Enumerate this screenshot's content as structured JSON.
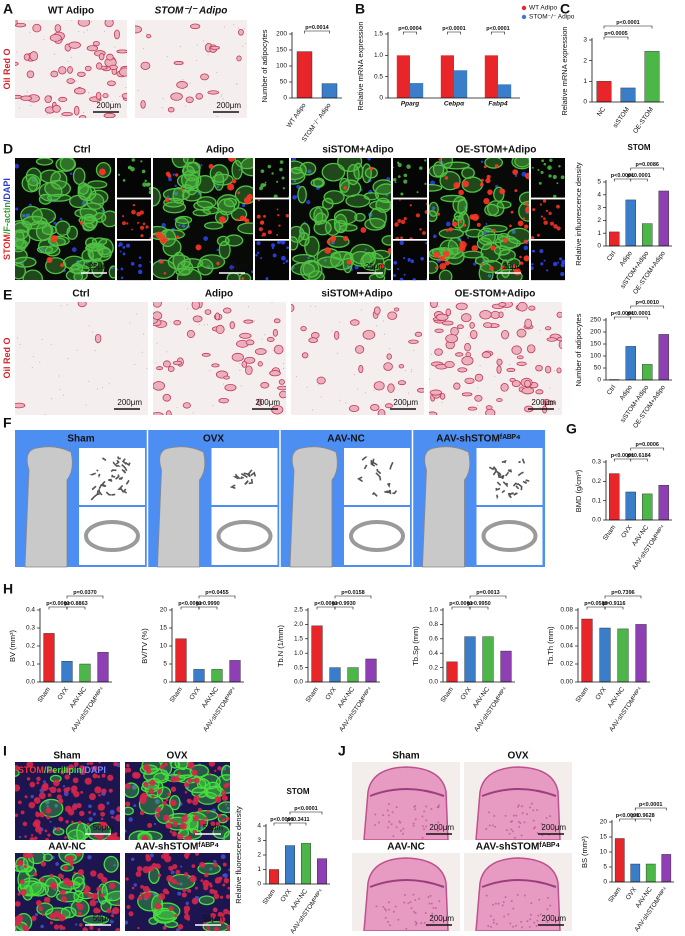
{
  "panel_letters": [
    "A",
    "B",
    "C",
    "D",
    "E",
    "F",
    "G",
    "H",
    "I",
    "J"
  ],
  "image_panels": {
    "A": {
      "labels": [
        "WT Adipo",
        "STOM⁻/⁻ Adipo"
      ],
      "stain": "Oil Red O",
      "scale": [
        "200μm",
        "200μm"
      ]
    },
    "D": {
      "labels": [
        "Ctrl",
        "Adipo",
        "siSTOM+Adipo",
        "OE-STOM+Adipo"
      ],
      "stain": [
        "STOM",
        "/F-actin",
        "/DAPI"
      ],
      "scale": [
        "25μm",
        "25μm",
        "25μm",
        "25μm"
      ]
    },
    "E": {
      "labels": [
        "Ctrl",
        "Adipo",
        "siSTOM+Adipo",
        "OE-STOM+Adipo"
      ],
      "stain": "Oil Red O",
      "scale": [
        "200μm",
        "200μm",
        "200μm",
        "200μm"
      ]
    },
    "F": {
      "labels": [
        "Sham",
        "OVX",
        "AAV-NC",
        "AAV-shSTOMᶠᴬᴮᴾ⁴"
      ]
    },
    "I": {
      "labels": [
        "Sham",
        "OVX",
        "AAV-NC",
        "AAV-shSTOMᶠᴬᴮᴾ⁴"
      ],
      "stain": [
        "STOM",
        "/Perilipin",
        "/DAPI"
      ],
      "scale": [
        "50μm",
        "50μm",
        "50μm",
        "50μm"
      ]
    },
    "J": {
      "labels": [
        "Sham",
        "OVX",
        "AAV-NC",
        "AAV-shSTOMᶠᴬᴮᴾ⁴"
      ],
      "scale": [
        "200μm",
        "200μm",
        "200μm",
        "200μm"
      ]
    }
  },
  "chart_data": [
    {
      "type": "bar",
      "y_label": "Number of adipocytes",
      "categories": [
        "WT Adipo",
        "STOM⁻/⁻ Adipo"
      ],
      "values": [
        145,
        45
      ],
      "colors": [
        "#e8262a",
        "#3a7dc9"
      ],
      "ylim": [
        0,
        200
      ],
      "yticks": [
        0,
        50,
        100,
        150,
        200
      ],
      "annotations": [
        "p=0.0014"
      ]
    },
    {
      "type": "bar",
      "y_label": "Relative mRNA expression",
      "categories": [
        "Pparg",
        "Cebpα",
        "Fabp4"
      ],
      "series": [
        {
          "name": "WT Adipo",
          "color": "#e8262a",
          "values": [
            1,
            1,
            1
          ]
        },
        {
          "name": "STOM⁻/⁻ Adipo",
          "color": "#3a7dc9",
          "values": [
            0.35,
            0.65,
            0.32
          ]
        }
      ],
      "legend": "upper right",
      "ylim": [
        0,
        1.5
      ],
      "yticks": [
        0,
        0.5,
        {
          "value": 1,
          "label": "1.0"
        },
        1.5
      ],
      "annotations": [
        "p=0.0004",
        "p<0.0001",
        "p<0.0001"
      ]
    },
    {
      "type": "bar",
      "y_label": "Relative mRNA expression",
      "categories": [
        "NC",
        "siSTOM",
        "OE-STOM"
      ],
      "values": [
        1,
        0.68,
        2.45
      ],
      "colors": [
        "#e8262a",
        "#3a7dc9",
        "#4cb648"
      ],
      "ylim": [
        0,
        3
      ],
      "yticks": [
        0,
        1,
        2,
        3
      ],
      "annotations": [
        "p<0.0001",
        "p=0.0005"
      ]
    },
    {
      "type": "bar",
      "title": "STOM",
      "y_label": "Relative influorescence density",
      "categories": [
        "Ctrl",
        "Adipo",
        "siSTOM+Adipo",
        "OE-STOM+Adipo"
      ],
      "values": [
        1.1,
        3.6,
        1.75,
        4.3
      ],
      "colors": [
        "#e8262a",
        "#3a7dc9",
        "#4cb648",
        "#8e3fb4"
      ],
      "ylim": [
        0,
        5
      ],
      "yticks": [
        0,
        1,
        2,
        3,
        4,
        5
      ],
      "annotations": [
        "p<0.0001",
        "p<0.0001",
        "p=0.0086"
      ]
    },
    {
      "type": "bar",
      "y_label": "Number of adipocytes",
      "categories": [
        "Ctrl",
        "Adipo",
        "siSTOM+Adipo",
        "OE-STOM+Adipo"
      ],
      "values": [
        2,
        140,
        65,
        190
      ],
      "colors": [
        "#e8262a",
        "#3a7dc9",
        "#4cb648",
        "#8e3fb4"
      ],
      "ylim": [
        0,
        250
      ],
      "yticks": [
        0,
        50,
        100,
        150,
        200,
        250
      ],
      "annotations": [
        "p<0.0001",
        "p<0.0001",
        "p=0.0010"
      ]
    },
    {
      "type": "bar",
      "y_label": "BMD (g/cm³)",
      "categories": [
        "Sham",
        "OVX",
        "AAV-NC",
        "AAV-shSTOMᶠᴬᴮᴾ⁴"
      ],
      "values": [
        0.24,
        0.145,
        0.135,
        0.18
      ],
      "colors": [
        "#e8262a",
        "#3a7dc9",
        "#4cb648",
        "#8e3fb4"
      ],
      "ylim": [
        0,
        0.3
      ],
      "yticks": [
        {
          "value": 0,
          "label": "0.0"
        },
        0.1,
        0.2,
        0.3
      ],
      "annotations": [
        "p<0.0001",
        "p=0.6184",
        "p=0.0006"
      ]
    },
    {
      "type": "bar",
      "y_label": "BV (mm³)",
      "categories": [
        "Sham",
        "OVX",
        "AAV-NC",
        "AAV-shSTOMᶠᴬᴮᴾ⁴"
      ],
      "values": [
        0.27,
        0.115,
        0.1,
        0.165
      ],
      "colors": [
        "#e8262a",
        "#3a7dc9",
        "#4cb648",
        "#8e3fb4"
      ],
      "ylim": [
        0,
        0.4
      ],
      "yticks": [
        {
          "value": 0,
          "label": "0.0"
        },
        0.1,
        0.2,
        0.3,
        0.4
      ],
      "annotations": [
        "p<0.0001",
        "p=0.8863",
        "p=0.0370"
      ]
    },
    {
      "type": "bar",
      "y_label": "BV/TV (%)",
      "categories": [
        "Sham",
        "OVX",
        "AAV-NC",
        "AAV-shSTOMᶠᴬᴮᴾ⁴"
      ],
      "values": [
        12,
        3.5,
        3.5,
        6
      ],
      "colors": [
        "#e8262a",
        "#3a7dc9",
        "#4cb648",
        "#8e3fb4"
      ],
      "ylim": [
        0,
        20
      ],
      "yticks": [
        0,
        5,
        10,
        15,
        20
      ],
      "annotations": [
        "p<0.0001",
        "p=0.9990",
        "p=0.0455"
      ]
    },
    {
      "type": "bar",
      "y_label": "Tb.N (1/mm)",
      "categories": [
        "Sham",
        "OVX",
        "AAV-NC",
        "AAV-shSTOMᶠᴬᴮᴾ⁴"
      ],
      "values": [
        1.95,
        0.5,
        0.5,
        0.8
      ],
      "colors": [
        "#e8262a",
        "#3a7dc9",
        "#4cb648",
        "#8e3fb4"
      ],
      "ylim": [
        0,
        2.5
      ],
      "yticks": [
        {
          "value": 0,
          "label": "0.0"
        },
        0.5,
        {
          "value": 1,
          "label": "1.0"
        },
        1.5,
        {
          "value": 2,
          "label": "2.0"
        },
        2.5
      ],
      "annotations": [
        "p<0.0001",
        "p=0.9930",
        "p=0.0158"
      ]
    },
    {
      "type": "bar",
      "y_label": "Tb.Sp (mm)",
      "categories": [
        "Sham",
        "OVX",
        "AAV-NC",
        "AAV-shSTOMᶠᴬᴮᴾ⁴"
      ],
      "values": [
        0.28,
        0.63,
        0.63,
        0.43
      ],
      "colors": [
        "#e8262a",
        "#3a7dc9",
        "#4cb648",
        "#8e3fb4"
      ],
      "ylim": [
        0,
        1
      ],
      "yticks": [
        {
          "value": 0,
          "label": "0.0"
        },
        0.2,
        0.4,
        0.6,
        0.8,
        {
          "value": 1,
          "label": "1.0"
        }
      ],
      "annotations": [
        "p<0.0001",
        "p=0.9950",
        "p=0.0013"
      ]
    },
    {
      "type": "bar",
      "y_label": "Tb.Th (mm)",
      "categories": [
        "Sham",
        "OVX",
        "AAV-NC",
        "AAV-shSTOMᶠᴬᴮᴾ⁴"
      ],
      "values": [
        0.07,
        0.06,
        0.059,
        0.064
      ],
      "colors": [
        "#e8262a",
        "#3a7dc9",
        "#4cb648",
        "#8e3fb4"
      ],
      "ylim": [
        0,
        0.08
      ],
      "yticks": [
        {
          "value": 0,
          "label": "0.00"
        },
        0.02,
        0.04,
        0.06,
        0.08
      ],
      "annotations": [
        "p=0.0588",
        "p=0.9116",
        "p=0.7396"
      ]
    },
    {
      "type": "bar",
      "title": "STOM",
      "y_label": "Relative fluorescence density",
      "categories": [
        "Sham",
        "OVX",
        "AAV-NC",
        "AAV-shSTOMᶠᴬᴮᴾ⁴"
      ],
      "values": [
        1,
        2.65,
        2.8,
        1.75
      ],
      "colors": [
        "#e8262a",
        "#3a7dc9",
        "#4cb648",
        "#8e3fb4"
      ],
      "ylim": [
        0,
        4
      ],
      "yticks": [
        0,
        1,
        2,
        3,
        4
      ],
      "annotations": [
        "p<0.0001",
        "p=0.3411",
        "p<0.0001"
      ]
    },
    {
      "type": "bar",
      "y_label": "BS (mm²)",
      "categories": [
        "Sham",
        "OVX",
        "AAV-NC",
        "AAV-shSTOMᶠᴬᴮᴾ⁴"
      ],
      "values": [
        14.5,
        6,
        6,
        9.2
      ],
      "colors": [
        "#e8262a",
        "#3a7dc9",
        "#4cb648",
        "#8e3fb4"
      ],
      "ylim": [
        0,
        20
      ],
      "yticks": [
        0,
        5,
        10,
        15,
        20
      ],
      "annotations": [
        "p<0.0001",
        "p=0.9628",
        "p<0.0001"
      ]
    }
  ]
}
